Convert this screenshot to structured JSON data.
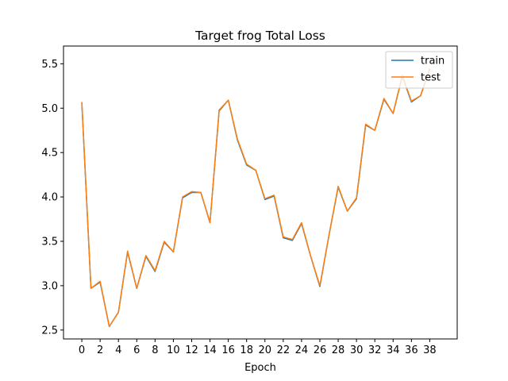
{
  "chart_data": {
    "type": "line",
    "title": "Target frog Total Loss",
    "xlabel": "Epoch",
    "ylabel": "",
    "xlim": [
      -2,
      41
    ],
    "ylim": [
      2.4,
      5.7
    ],
    "xticks": [
      0,
      2,
      4,
      6,
      8,
      10,
      12,
      14,
      16,
      18,
      20,
      22,
      24,
      26,
      28,
      30,
      32,
      34,
      36,
      38
    ],
    "yticks": [
      2.5,
      3.0,
      3.5,
      4.0,
      4.5,
      5.0,
      5.5
    ],
    "ytick_labels": [
      "2.5",
      "3.0",
      "3.5",
      "4.0",
      "4.5",
      "5.0",
      "5.5"
    ],
    "grid": false,
    "legend": "top-right",
    "x": [
      0,
      1,
      2,
      3,
      4,
      5,
      6,
      7,
      8,
      9,
      10,
      11,
      12,
      13,
      14,
      15,
      16,
      17,
      18,
      19,
      20,
      21,
      22,
      23,
      24,
      25,
      26,
      27,
      28,
      29,
      30,
      31,
      32,
      33,
      34,
      35,
      36,
      37,
      38
    ],
    "series": [
      {
        "name": "train",
        "color": "#1f77b4",
        "values": [
          5.06,
          2.97,
          3.04,
          2.54,
          2.7,
          3.38,
          2.97,
          3.33,
          3.16,
          3.49,
          3.38,
          3.99,
          4.05,
          4.05,
          3.71,
          4.97,
          5.09,
          4.64,
          4.36,
          4.3,
          3.97,
          4.01,
          3.54,
          3.51,
          3.7,
          3.33,
          2.99,
          3.57,
          4.11,
          3.84,
          3.98,
          4.81,
          4.75,
          5.1,
          4.94,
          5.36,
          5.07,
          5.14,
          5.44
        ]
      },
      {
        "name": "test",
        "color": "#ff7f0e",
        "values": [
          5.07,
          2.97,
          3.05,
          2.54,
          2.7,
          3.39,
          2.97,
          3.34,
          3.17,
          3.5,
          3.38,
          4.0,
          4.06,
          4.05,
          3.71,
          4.98,
          5.09,
          4.65,
          4.37,
          4.3,
          3.98,
          4.02,
          3.55,
          3.52,
          3.71,
          3.33,
          3.0,
          3.57,
          4.12,
          3.84,
          3.99,
          4.82,
          4.75,
          5.11,
          4.94,
          5.37,
          5.08,
          5.14,
          5.45
        ]
      }
    ]
  }
}
